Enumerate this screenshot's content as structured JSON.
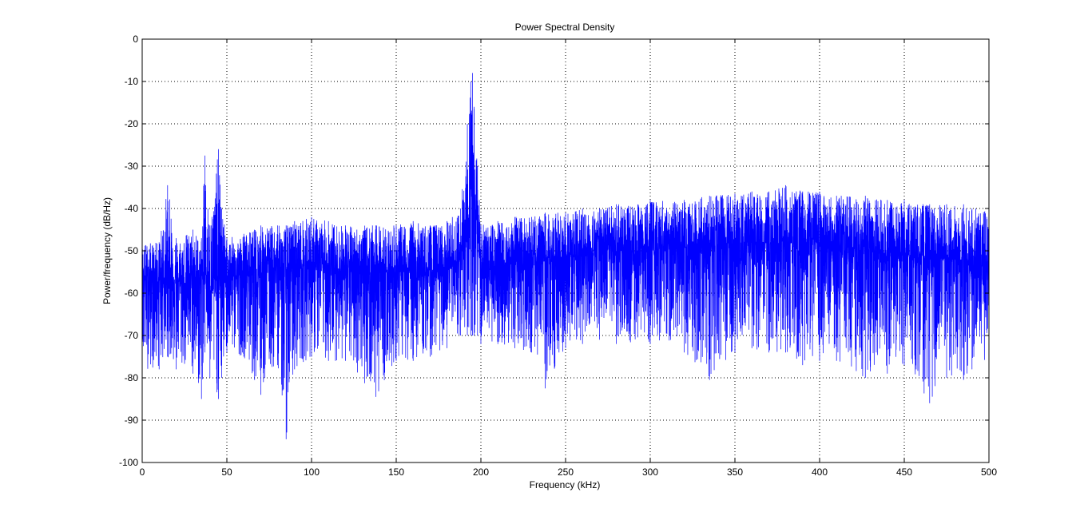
{
  "chart_data": {
    "type": "line",
    "title": "Power Spectral Density",
    "xlabel": "Frequency (kHz)",
    "ylabel": "Power/frequency (dB/Hz)",
    "xlim": [
      0,
      500
    ],
    "ylim": [
      -100,
      0
    ],
    "xticks": [
      0,
      50,
      100,
      150,
      200,
      250,
      300,
      350,
      400,
      450,
      500
    ],
    "yticks": [
      0,
      -10,
      -20,
      -30,
      -40,
      -50,
      -60,
      -70,
      -80,
      -90,
      -100
    ],
    "grid": true,
    "line_color": "#0000ff",
    "series": [
      {
        "x": [
          0,
          10,
          15,
          20,
          30,
          35,
          37,
          40,
          45,
          47,
          50,
          60,
          70,
          80,
          85,
          90,
          100,
          110,
          120,
          138,
          150,
          160,
          170,
          180,
          188,
          192,
          194,
          195,
          196,
          198,
          200,
          210,
          220,
          230,
          238,
          250,
          260,
          270,
          280,
          300,
          320,
          335,
          350,
          360,
          370,
          380,
          390,
          400,
          410,
          427,
          440,
          450,
          465,
          475,
          485,
          490,
          500
        ],
        "y_center": [
          -57,
          -57,
          -56,
          -57,
          -58,
          -57,
          -55,
          -57,
          -57,
          -55,
          -56,
          -56,
          -55,
          -54,
          -55,
          -54,
          -54,
          -54,
          -55,
          -55,
          -55,
          -55,
          -55,
          -55,
          -52,
          -45,
          -36,
          -35,
          -36,
          -45,
          -54,
          -54,
          -53,
          -53,
          -52,
          -52,
          -51,
          -51,
          -50,
          -50,
          -49,
          -49,
          -48,
          -48,
          -48,
          -48,
          -48,
          -48,
          -49,
          -50,
          -51,
          -51,
          -52,
          -52,
          -52,
          -53,
          -53
        ],
        "y_max": [
          -48,
          -48,
          -34.5,
          -47,
          -45,
          -47,
          -27.5,
          -44,
          -26,
          -40,
          -47,
          -46,
          -44,
          -44,
          -44,
          -43,
          -42,
          -43,
          -44,
          -44,
          -44,
          -43,
          -44,
          -43,
          -40,
          -20,
          -10,
          -8,
          -16,
          -30,
          -44,
          -43,
          -42,
          -42,
          -41,
          -41,
          -40,
          -40,
          -39,
          -38,
          -38,
          -37,
          -36.5,
          -36,
          -36,
          -34.5,
          -36,
          -36,
          -37,
          -37,
          -38,
          -38,
          -39,
          -39,
          -39,
          -40,
          -40
        ],
        "y_min": [
          -78,
          -78,
          -75,
          -78,
          -79,
          -85,
          -74,
          -80,
          -85,
          -80,
          -74,
          -75,
          -84,
          -77,
          -94.5,
          -78,
          -75,
          -76,
          -76,
          -84.5,
          -76,
          -76,
          -75,
          -73,
          -70,
          -70,
          -70,
          -70,
          -70,
          -70,
          -72,
          -72,
          -73,
          -74,
          -82.5,
          -73,
          -72,
          -71,
          -72,
          -72,
          -74,
          -80.5,
          -74,
          -73,
          -74,
          -74,
          -77,
          -76,
          -76,
          -80,
          -79,
          -77,
          -86,
          -80,
          -80.5,
          -78,
          -76
        ]
      }
    ]
  }
}
